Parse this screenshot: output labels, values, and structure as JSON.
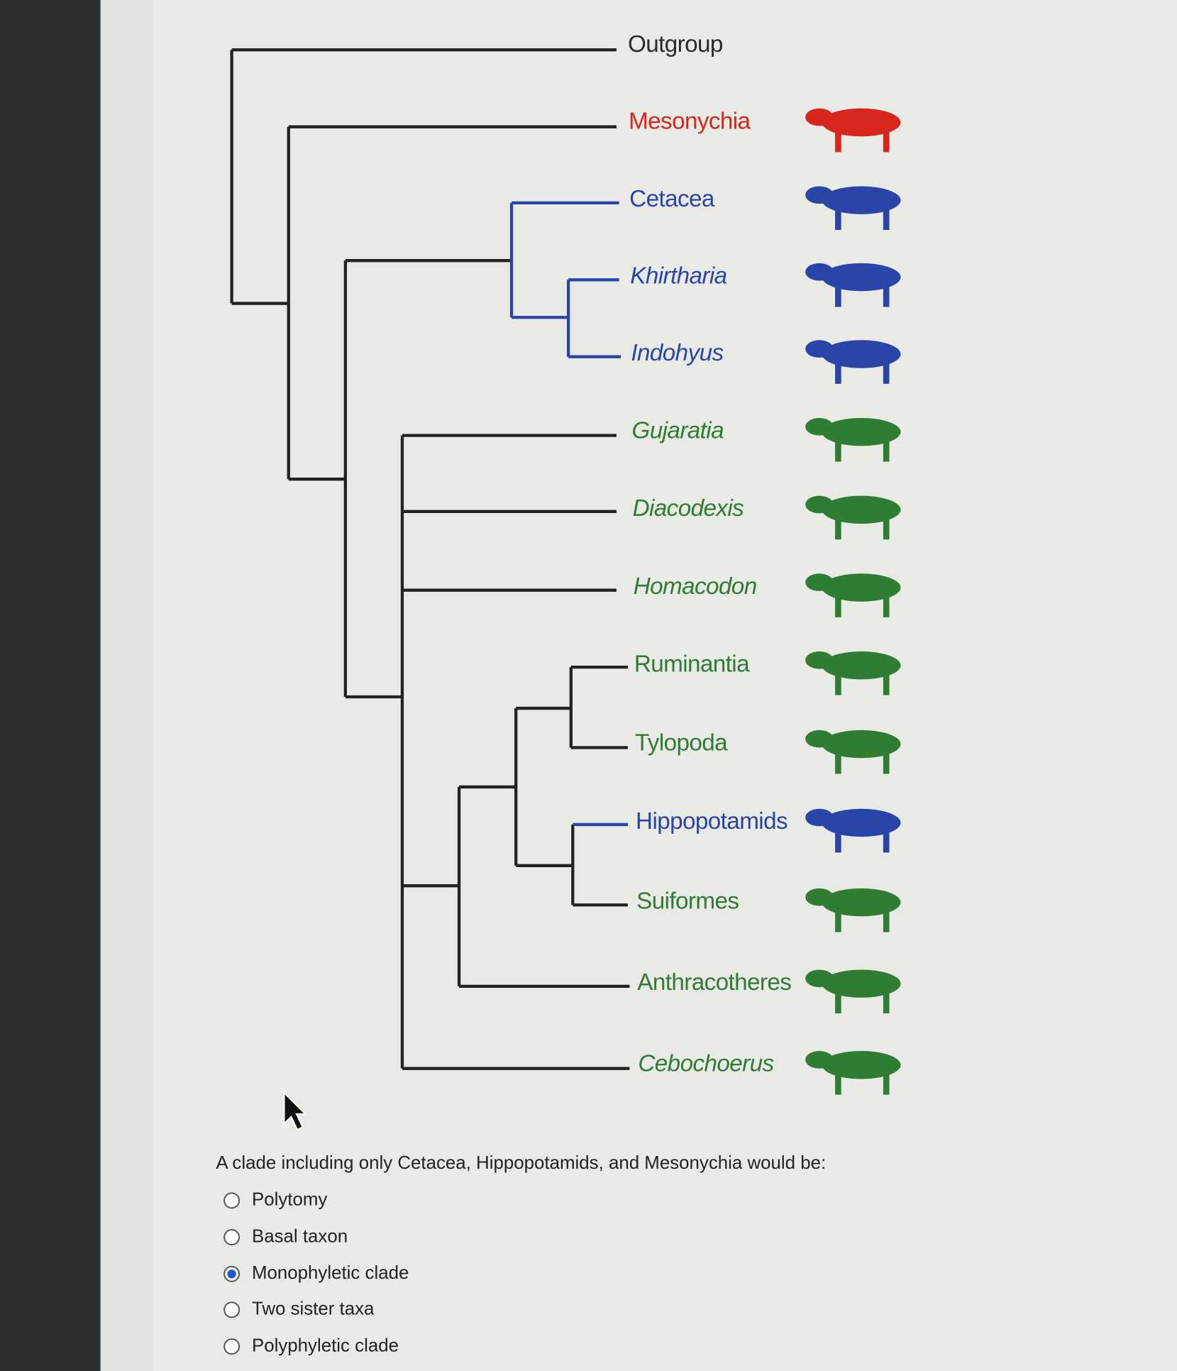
{
  "tree": {
    "taxa": [
      {
        "label": "Outgroup",
        "color": "#2b2b2b",
        "italic": false
      },
      {
        "label": "Mesonychia",
        "color": "#d9261c",
        "italic": false
      },
      {
        "label": "Cetacea",
        "color": "#2a45a8",
        "italic": false
      },
      {
        "label": "Khirtharia",
        "color": "#2a45a8",
        "italic": true
      },
      {
        "label": "Indohyus",
        "color": "#2a45a8",
        "italic": true
      },
      {
        "label": "Gujaratia",
        "color": "#2f7d32",
        "italic": true
      },
      {
        "label": "Diacodexis",
        "color": "#2f7d32",
        "italic": true
      },
      {
        "label": "Homacodon",
        "color": "#2f7d32",
        "italic": true
      },
      {
        "label": "Ruminantia",
        "color": "#2f7d32",
        "italic": false
      },
      {
        "label": "Tylopoda",
        "color": "#2f7d32",
        "italic": false
      },
      {
        "label": "Hippopotamids",
        "color": "#2a45a8",
        "italic": false
      },
      {
        "label": "Suiformes",
        "color": "#2f7d32",
        "italic": false
      },
      {
        "label": "Anthracotheres",
        "color": "#2f7d32",
        "italic": false
      },
      {
        "label": "Cebochoerus",
        "color": "#2f7d32",
        "italic": true
      }
    ]
  },
  "question": {
    "text": "A clade including only Cetacea, Hippopotamids, and Mesonychia would be:",
    "options": [
      "Polytomy",
      "Basal taxon",
      "Monophyletic clade",
      "Two sister taxa",
      "Polyphyletic clade"
    ],
    "selected": 2
  }
}
